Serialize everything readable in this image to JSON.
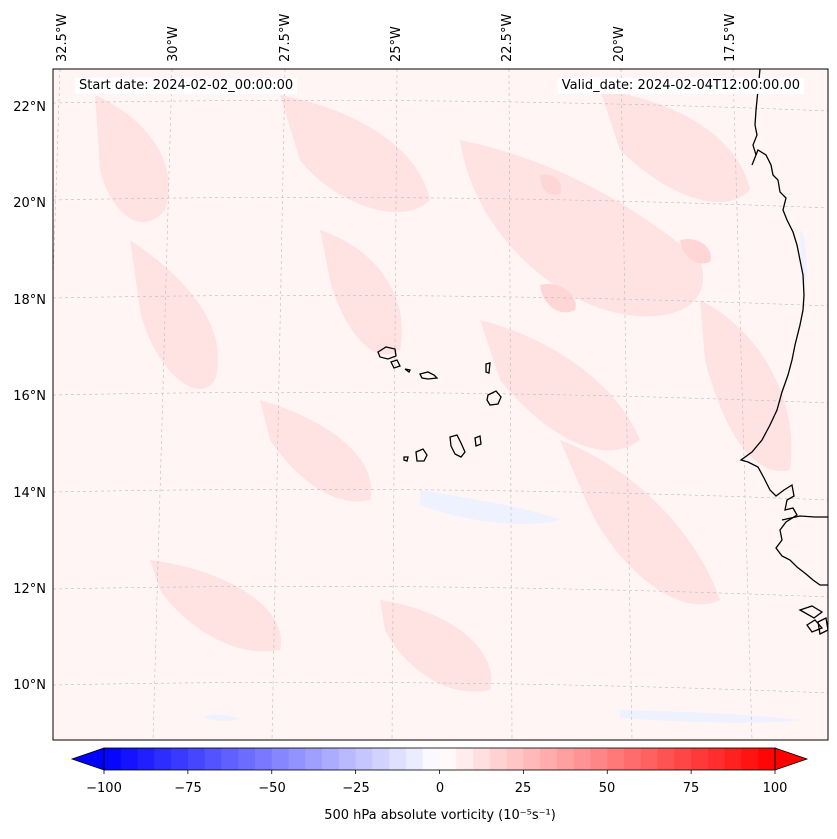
{
  "header": {
    "start_date": "Start date: 2024-02-02_00:00:00",
    "valid_date": "Valid_date: 2024-02-04T12:00:00.00"
  },
  "map": {
    "extent": {
      "lon_min": -33.0,
      "lon_max": -16.0,
      "lat_min": 8.9,
      "lat_max": 22.8
    },
    "lon_ticks": [
      "32.5°W",
      "30°W",
      "27.5°W",
      "25°W",
      "22.5°W",
      "20°W",
      "17.5°W"
    ],
    "lat_ticks": [
      "22°N",
      "20°N",
      "18°N",
      "16°N",
      "14°N",
      "12°N",
      "10°N"
    ],
    "gridlines": true,
    "field_colors": {
      "background": "#fff5f5",
      "weak_positive": "#ffe3e3",
      "moderate_positive": "#ffd6d6",
      "weak_negative": "#eef2ff"
    },
    "coastline_color": "#000000"
  },
  "colorbar": {
    "label": "500 hPa absolute vorticity (10⁻⁵s⁻¹)",
    "min": -100,
    "max": 100,
    "step": 5,
    "extend": "both",
    "colormap": "bwr",
    "low_color": "#0000ff",
    "mid_color": "#ffffff",
    "high_color": "#ff0000",
    "ticks": [
      "−100",
      "−75",
      "−50",
      "−25",
      "0",
      "25",
      "50",
      "75",
      "100"
    ]
  }
}
